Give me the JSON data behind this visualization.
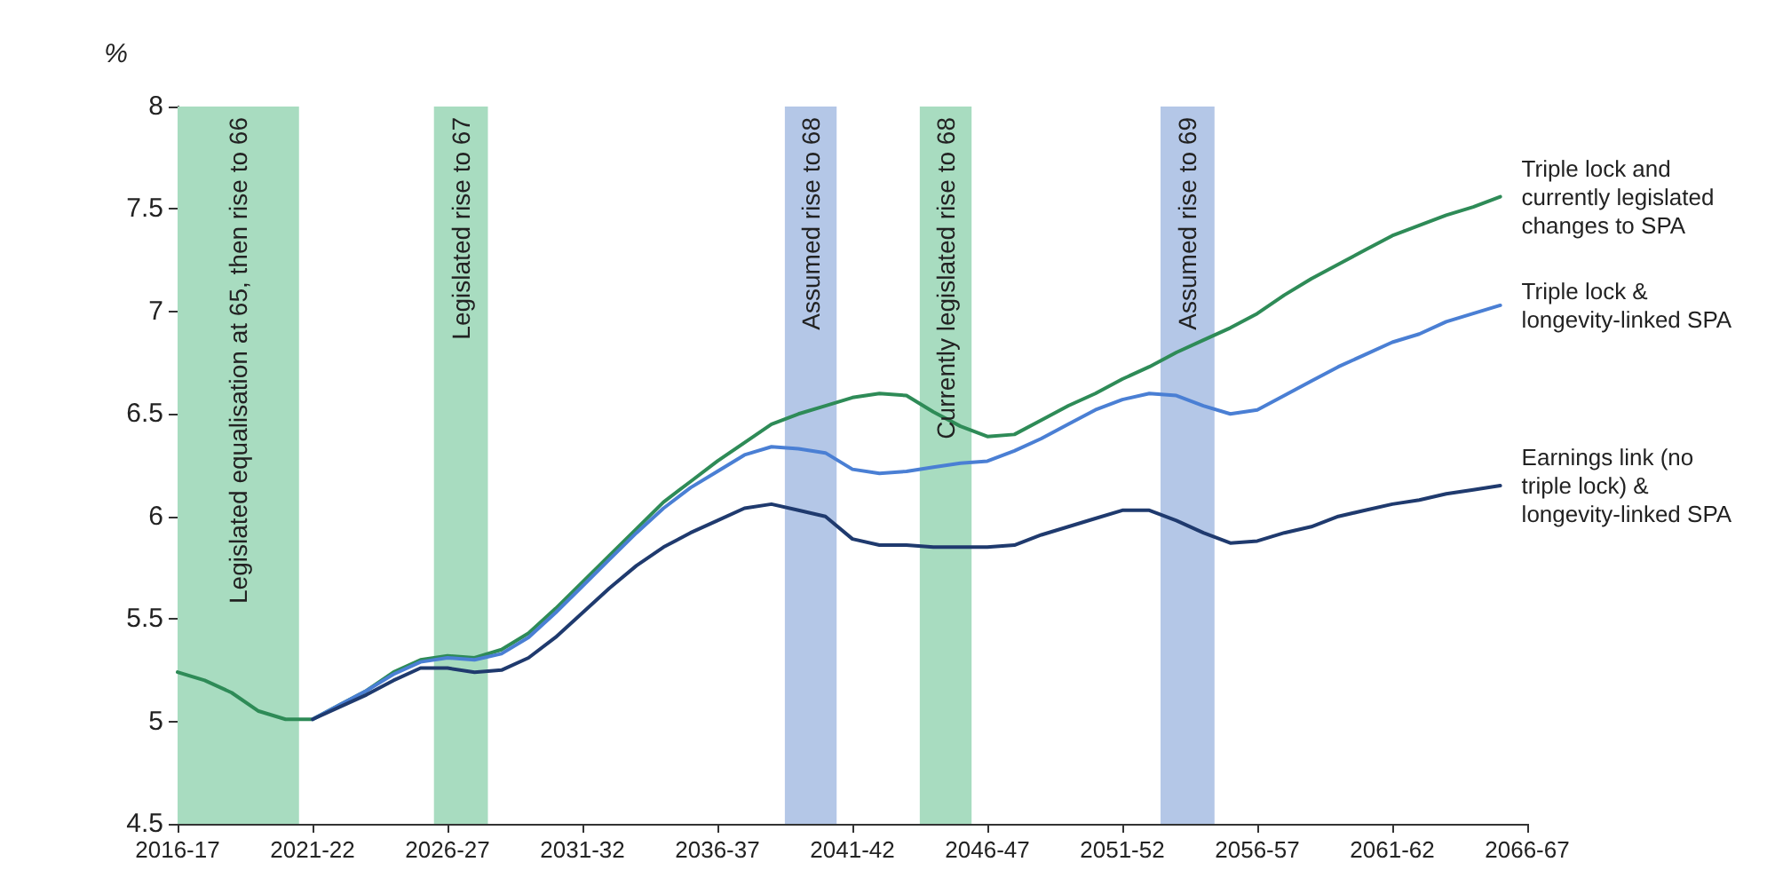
{
  "chart_data": {
    "type": "line",
    "ylabel": "%",
    "x": [
      "2016",
      "2017",
      "2018",
      "2019",
      "2020",
      "2021",
      "2022",
      "2023",
      "2024",
      "2025",
      "2026",
      "2027",
      "2028",
      "2029",
      "2030",
      "2031",
      "2032",
      "2033",
      "2034",
      "2035",
      "2036",
      "2037",
      "2038",
      "2039",
      "2040",
      "2041",
      "2042",
      "2043",
      "2044",
      "2045",
      "2046",
      "2047",
      "2048",
      "2049",
      "2050",
      "2051",
      "2052",
      "2053",
      "2054",
      "2055",
      "2056",
      "2057",
      "2058",
      "2059",
      "2060",
      "2061",
      "2062",
      "2063",
      "2064",
      "2065"
    ],
    "series": [
      {
        "name": "Triple lock and currently legislated changes to SPA",
        "color": "#2e8b57",
        "values": [
          5.24,
          5.2,
          5.14,
          5.05,
          5.01,
          5.01,
          5.08,
          5.15,
          5.24,
          5.3,
          5.32,
          5.31,
          5.35,
          5.43,
          5.55,
          5.68,
          5.81,
          5.94,
          6.07,
          6.17,
          6.27,
          6.36,
          6.45,
          6.5,
          6.54,
          6.58,
          6.6,
          6.59,
          6.51,
          6.44,
          6.39,
          6.4,
          6.47,
          6.54,
          6.6,
          6.67,
          6.73,
          6.8,
          6.86,
          6.92,
          6.99,
          7.08,
          7.16,
          7.23,
          7.3,
          7.37,
          7.42,
          7.47,
          7.51,
          7.56
        ]
      },
      {
        "name": "Triple lock & longevity-linked SPA",
        "color": "#4a7fd4",
        "values": [
          null,
          null,
          null,
          null,
          null,
          5.01,
          5.08,
          5.15,
          5.23,
          5.29,
          5.31,
          5.3,
          5.33,
          5.41,
          5.53,
          5.66,
          5.79,
          5.92,
          6.04,
          6.14,
          6.22,
          6.3,
          6.34,
          6.33,
          6.31,
          6.23,
          6.21,
          6.22,
          6.24,
          6.26,
          6.27,
          6.32,
          6.38,
          6.45,
          6.52,
          6.57,
          6.6,
          6.59,
          6.54,
          6.5,
          6.52,
          6.59,
          6.66,
          6.73,
          6.79,
          6.85,
          6.89,
          6.95,
          6.99,
          7.03
        ]
      },
      {
        "name": "Earnings link (no triple lock) & longevity-linked SPA",
        "color": "#1f3a6e",
        "values": [
          null,
          null,
          null,
          null,
          null,
          5.01,
          5.07,
          5.13,
          5.2,
          5.26,
          5.26,
          5.24,
          5.25,
          5.31,
          5.41,
          5.53,
          5.65,
          5.76,
          5.85,
          5.92,
          5.98,
          6.04,
          6.06,
          6.03,
          6.0,
          5.89,
          5.86,
          5.86,
          5.85,
          5.85,
          5.85,
          5.86,
          5.91,
          5.95,
          5.99,
          6.03,
          6.03,
          5.98,
          5.92,
          5.87,
          5.88,
          5.92,
          5.95,
          6.0,
          6.03,
          6.06,
          6.08,
          6.11,
          6.13,
          6.15
        ]
      }
    ],
    "xlim": [
      "2016",
      "2066"
    ],
    "xticks": [
      {
        "value": "2016",
        "label": "2016-17"
      },
      {
        "value": "2021",
        "label": "2021-22"
      },
      {
        "value": "2026",
        "label": "2026-27"
      },
      {
        "value": "2031",
        "label": "2031-32"
      },
      {
        "value": "2036",
        "label": "2036-37"
      },
      {
        "value": "2041",
        "label": "2041-42"
      },
      {
        "value": "2046",
        "label": "2046-47"
      },
      {
        "value": "2051",
        "label": "2051-52"
      },
      {
        "value": "2056",
        "label": "2056-57"
      },
      {
        "value": "2061",
        "label": "2061-62"
      },
      {
        "value": "2066",
        "label": "2066-67"
      }
    ],
    "ylim": [
      4.5,
      8.0
    ],
    "yticks": [
      4.5,
      5.0,
      5.5,
      6.0,
      6.5,
      7.0,
      7.5,
      8.0
    ],
    "grid": false,
    "marker": "none",
    "line_style": "solid",
    "bands": [
      {
        "axis": "x",
        "from": "2016",
        "to": "2020-07",
        "label": "Legislated equalisation at 65, then rise to 66",
        "color": "#a8dcc0"
      },
      {
        "axis": "x",
        "from": "2025-07",
        "to": "2027-07",
        "label": "Legislated rise to 67",
        "color": "#a8dcc0"
      },
      {
        "axis": "x",
        "from": "2038-07",
        "to": "2040-06",
        "label": "Assumed rise to 68",
        "color": "#b4c7e7"
      },
      {
        "axis": "x",
        "from": "2043-07",
        "to": "2045-06",
        "label": "Currently legislated rise to 68",
        "color": "#a8dcc0"
      },
      {
        "axis": "x",
        "from": "2052-06",
        "to": "2054-06",
        "label": "Assumed rise to 69",
        "color": "#b4c7e7"
      }
    ]
  }
}
